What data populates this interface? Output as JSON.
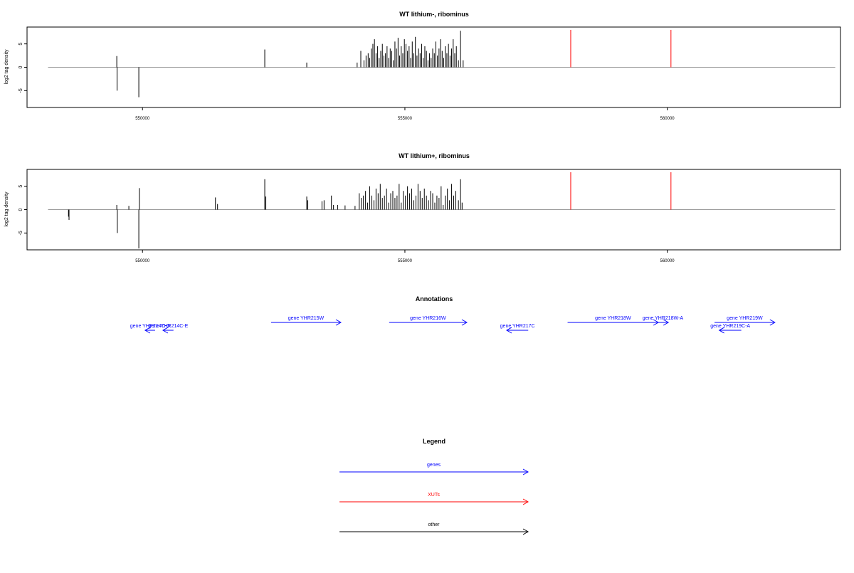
{
  "colors": {
    "gene": "#0000ff",
    "xut": "#ff0000",
    "other": "#000000",
    "baseline": "#999999"
  },
  "chart_data": [
    {
      "type": "bar",
      "title": "WT lithium-, ribominus",
      "ylabel": "log2 tag density",
      "xlim": [
        547800,
        563300
      ],
      "ylim": [
        -8.6,
        8.6
      ],
      "xticks": [
        550000,
        555000,
        560000
      ],
      "xtick_labels": [
        "550000",
        "555000",
        "560000"
      ],
      "yticks": [
        -5,
        0,
        5
      ],
      "ytick_labels": [
        "-5",
        "0",
        "5"
      ],
      "baseline_range": [
        548200,
        563200
      ],
      "series": [
        {
          "color": "#000000",
          "x": [
            549510,
            549515,
            549930,
            552330,
            553130,
            554090,
            554160,
            554220,
            554260,
            554300,
            554330,
            554360,
            554390,
            554420,
            554450,
            554480,
            554510,
            554540,
            554570,
            554600,
            554630,
            554660,
            554690,
            554720,
            554750,
            554780,
            554810,
            554840,
            554870,
            554900,
            554930,
            554960,
            554990,
            555020,
            555050,
            555080,
            555110,
            555140,
            555170,
            555200,
            555230,
            555260,
            555290,
            555320,
            555350,
            555380,
            555410,
            555440,
            555470,
            555500,
            555530,
            555560,
            555590,
            555620,
            555650,
            555680,
            555710,
            555740,
            555770,
            555800,
            555830,
            555860,
            555890,
            555920,
            555950,
            555980,
            556020,
            556060,
            556110
          ],
          "y": [
            2.4,
            -5.0,
            -6.4,
            3.8,
            1.0,
            1.0,
            3.5,
            1.5,
            2.5,
            3.0,
            2.0,
            4.0,
            5.0,
            6.0,
            3.0,
            4.5,
            2.0,
            3.5,
            5.0,
            2.5,
            3.0,
            4.5,
            2.0,
            4.0,
            3.5,
            1.5,
            5.5,
            4.0,
            6.3,
            2.5,
            4.5,
            3.0,
            6.0,
            5.0,
            3.5,
            4.5,
            2.0,
            5.5,
            3.0,
            6.5,
            2.5,
            4.0,
            3.0,
            5.0,
            2.0,
            4.5,
            3.5,
            1.5,
            3.0,
            2.0,
            4.0,
            3.0,
            5.5,
            2.5,
            4.0,
            6.0,
            3.5,
            2.0,
            4.5,
            3.0,
            5.0,
            2.5,
            4.0,
            6.0,
            3.0,
            4.5,
            1.5,
            7.8,
            1.5
          ]
        },
        {
          "color": "#ff0000",
          "x": [
            558160,
            560070
          ],
          "y": [
            8.0,
            8.0
          ]
        }
      ]
    },
    {
      "type": "bar",
      "title": "WT lithium+, ribominus",
      "ylabel": "log2 tag density",
      "xlim": [
        547800,
        563300
      ],
      "ylim": [
        -8.6,
        8.6
      ],
      "xticks": [
        550000,
        555000,
        560000
      ],
      "xtick_labels": [
        "550000",
        "555000",
        "560000"
      ],
      "yticks": [
        -5,
        0,
        5
      ],
      "ytick_labels": [
        "-5",
        "0",
        "5"
      ],
      "baseline_range": [
        548200,
        563200
      ],
      "series": [
        {
          "color": "#000000",
          "x": [
            548590,
            548600,
            549510,
            549520,
            549740,
            549930,
            549940,
            551390,
            551430,
            552330,
            552350,
            553130,
            553150,
            553420,
            553460,
            553600,
            553640,
            553720,
            553860,
            554050,
            554130,
            554170,
            554210,
            554250,
            554290,
            554330,
            554370,
            554410,
            554450,
            554490,
            554530,
            554570,
            554610,
            554650,
            554690,
            554730,
            554770,
            554810,
            554850,
            554890,
            554930,
            554970,
            555010,
            555050,
            555090,
            555130,
            555170,
            555210,
            555250,
            555290,
            555330,
            555370,
            555410,
            555450,
            555490,
            555530,
            555570,
            555610,
            555650,
            555690,
            555730,
            555770,
            555810,
            555850,
            555890,
            555930,
            555970,
            556020,
            556060,
            556090
          ],
          "y": [
            -1.5,
            -2.2,
            1.0,
            -5.0,
            0.8,
            -8.3,
            4.6,
            2.6,
            1.2,
            6.5,
            2.8,
            2.8,
            2.0,
            1.8,
            2.0,
            3.0,
            1.0,
            1.0,
            0.9,
            0.8,
            3.5,
            2.5,
            3.0,
            4.0,
            1.5,
            5.0,
            3.0,
            2.0,
            4.5,
            3.5,
            5.5,
            2.5,
            3.0,
            4.5,
            1.5,
            3.5,
            4.0,
            2.5,
            3.0,
            5.5,
            1.5,
            4.0,
            3.0,
            5.0,
            3.5,
            4.5,
            2.0,
            3.0,
            5.5,
            4.0,
            2.5,
            4.5,
            3.0,
            2.0,
            4.0,
            3.5,
            1.5,
            3.0,
            2.5,
            5.0,
            1.0,
            3.0,
            4.5,
            2.0,
            5.5,
            3.0,
            4.0,
            2.0,
            6.5,
            1.5
          ]
        },
        {
          "color": "#ff0000",
          "x": [
            558160,
            560070
          ],
          "y": [
            8.0,
            8.0
          ]
        }
      ]
    }
  ],
  "annotations": {
    "title": "Annotations",
    "xlim": [
      547800,
      563300
    ],
    "features": [
      {
        "label": "gene YHR214C-D",
        "start": 550050,
        "end": 550240,
        "strand": "-",
        "row": "lower",
        "type": "gene"
      },
      {
        "label": "gene YHR214C-E",
        "start": 550390,
        "end": 550590,
        "strand": "-",
        "row": "lower",
        "type": "gene"
      },
      {
        "label": "gene YHR215W",
        "start": 552450,
        "end": 553780,
        "strand": "+",
        "row": "upper",
        "type": "gene"
      },
      {
        "label": "gene YHR216W",
        "start": 554700,
        "end": 556180,
        "strand": "+",
        "row": "upper",
        "type": "gene"
      },
      {
        "label": "gene YHR217C",
        "start": 556940,
        "end": 557350,
        "strand": "-",
        "row": "lower",
        "type": "gene"
      },
      {
        "label": "gene YHR218W",
        "start": 558100,
        "end": 559830,
        "strand": "+",
        "row": "upper",
        "type": "gene"
      },
      {
        "label": "gene YHR218W-A",
        "start": 559810,
        "end": 560020,
        "strand": "+",
        "row": "upper",
        "type": "gene"
      },
      {
        "label": "gene YHR219W",
        "start": 560900,
        "end": 562050,
        "strand": "+",
        "row": "upper",
        "type": "gene"
      },
      {
        "label": "gene YHR219C-A",
        "start": 560990,
        "end": 561410,
        "strand": "-",
        "row": "lower",
        "type": "gene"
      }
    ]
  },
  "legend": {
    "title": "Legend",
    "items": [
      {
        "label": "genes",
        "type": "gene"
      },
      {
        "label": "XUTs",
        "type": "xut"
      },
      {
        "label": "other",
        "type": "other"
      }
    ]
  }
}
